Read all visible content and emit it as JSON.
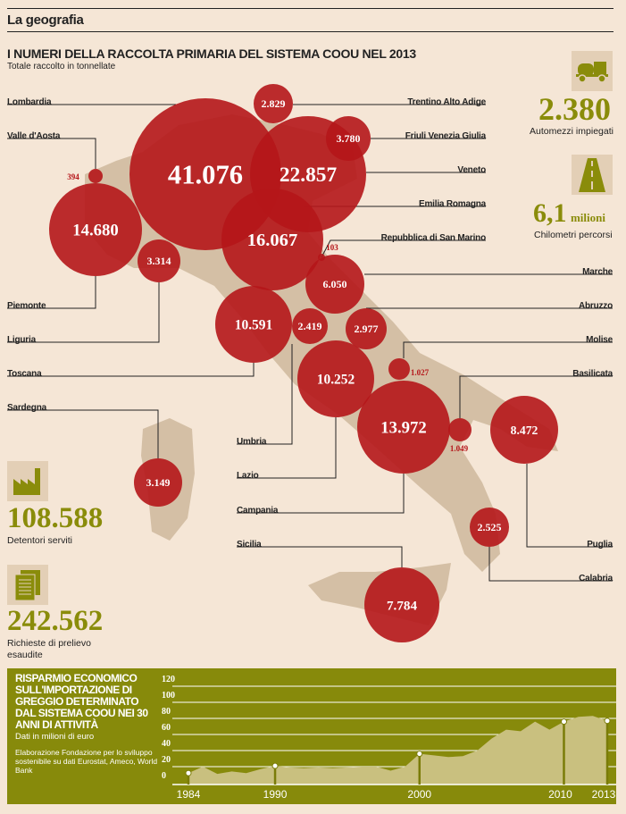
{
  "section": "La geografia",
  "title": "I NUMERI DELLA RACCOLTA PRIMARIA DEL SISTEMA COOU NEL 2013",
  "subtitle": "Totale raccolto in tonnellate",
  "colors": {
    "bubble": "#b5161a",
    "map": "#d4bfa5",
    "accent": "#8a8c0a",
    "panel": "#878a0b",
    "area": "#c9c07f"
  },
  "regions": [
    {
      "name": "Lombardia",
      "value": "41.076"
    },
    {
      "name": "Trentino Alto Adige",
      "value": "2.829"
    },
    {
      "name": "Valle d'Aosta",
      "value": "394"
    },
    {
      "name": "Friuli Venezia Giulia",
      "value": "3.780"
    },
    {
      "name": "Veneto",
      "value": "22.857"
    },
    {
      "name": "Emilia Romagna",
      "value": "16.067"
    },
    {
      "name": "Repubblica di San Marino",
      "value": "103"
    },
    {
      "name": "Marche",
      "value": "6.050"
    },
    {
      "name": "Abruzzo",
      "value": "2.977"
    },
    {
      "name": "Molise",
      "value": "1.027"
    },
    {
      "name": "Basilicata",
      "value": "1.049"
    },
    {
      "name": "Piemonte",
      "value": "14.680"
    },
    {
      "name": "Liguria",
      "value": "3.314"
    },
    {
      "name": "Toscana",
      "value": "10.591"
    },
    {
      "name": "Sardegna",
      "value": "3.149"
    },
    {
      "name": "Umbria",
      "value": "2.419"
    },
    {
      "name": "Lazio",
      "value": "10.252"
    },
    {
      "name": "Campania",
      "value": "13.972"
    },
    {
      "name": "Sicilia",
      "value": "7.784"
    },
    {
      "name": "Puglia",
      "value": "8.472"
    },
    {
      "name": "Calabria",
      "value": "2.525"
    }
  ],
  "stats": {
    "vehicles": {
      "value": "2.380",
      "label": "Automezzi impiegati",
      "icon": "truck-icon"
    },
    "km": {
      "value": "6,1",
      "unit": "milioni",
      "label": "Chilometri percorsi",
      "icon": "road-icon"
    },
    "holders": {
      "value": "108.588",
      "label": "Detentori serviti",
      "icon": "factory-icon"
    },
    "requests": {
      "value": "242.562",
      "label": "Richieste di prelievo esaudite",
      "icon": "documents-icon"
    }
  },
  "chart_data": {
    "type": "area",
    "title": "RISPARMIO ECONOMICO SULL'IMPORTAZIONE DI GREGGIO DETERMINATO DAL SISTEMA COOU NEI 30 ANNI DI ATTIVITÀ",
    "ylabel": "Dati in milioni di euro",
    "source": "Elaborazione Fondazione per lo sviluppo sostenibile su dati Eurostat, Ameco, World Bank",
    "ylim": [
      0,
      120
    ],
    "yticks": [
      "0",
      "20",
      "40",
      "60",
      "80",
      "100",
      "120"
    ],
    "xticks": [
      "1984",
      "1990",
      "2000",
      "2010",
      "2013"
    ],
    "highlight_years": [
      1984,
      1990,
      2000,
      2010,
      2013
    ],
    "x": [
      1984,
      1985,
      1986,
      1987,
      1988,
      1989,
      1990,
      1991,
      1992,
      1993,
      1994,
      1995,
      1996,
      1997,
      1998,
      1999,
      2000,
      2001,
      2002,
      2003,
      2004,
      2005,
      2006,
      2007,
      2008,
      2009,
      2010,
      2011,
      2012,
      2013
    ],
    "values": [
      12,
      20,
      11,
      14,
      12,
      17,
      21,
      19,
      18,
      19,
      18,
      19,
      20,
      20,
      15,
      20,
      36,
      34,
      32,
      33,
      40,
      55,
      66,
      64,
      76,
      66,
      76,
      82,
      83,
      77
    ]
  }
}
